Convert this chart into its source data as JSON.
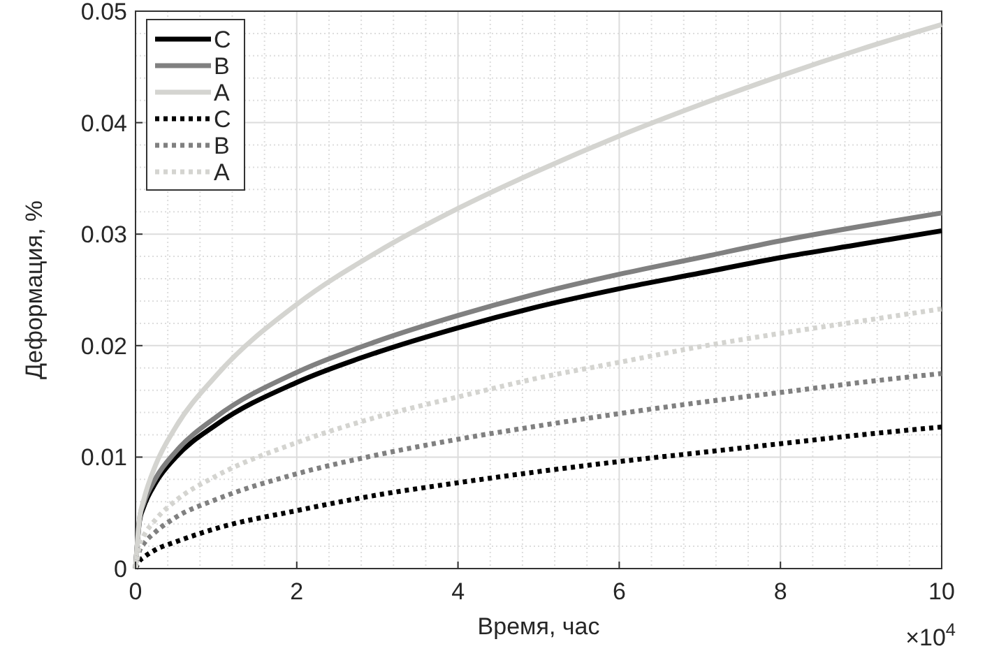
{
  "chart_data": {
    "type": "line",
    "xlabel": "Время, час",
    "ylabel": "Деформация, %",
    "x": [
      0,
      0.05,
      0.1,
      0.25,
      0.5,
      1,
      2,
      3,
      4,
      5,
      6,
      7,
      8,
      9,
      10
    ],
    "series": [
      {
        "name": "C",
        "color": "#000000",
        "line_style": "solid",
        "values": [
          0,
          0.0043,
          0.0055,
          0.0077,
          0.01,
          0.0129,
          0.0167,
          0.0194,
          0.0216,
          0.0235,
          0.0251,
          0.0265,
          0.0279,
          0.0291,
          0.0303
        ]
      },
      {
        "name": "B",
        "color": "#808080",
        "line_style": "solid",
        "values": [
          0,
          0.0045,
          0.0058,
          0.0081,
          0.0105,
          0.0136,
          0.0176,
          0.0204,
          0.0227,
          0.0247,
          0.0264,
          0.0279,
          0.0294,
          0.0307,
          0.0319
        ]
      },
      {
        "name": "A",
        "color": "#d4d4d0",
        "line_style": "solid",
        "values": [
          0,
          0.0045,
          0.0061,
          0.0093,
          0.0127,
          0.0173,
          0.0237,
          0.0284,
          0.0323,
          0.0357,
          0.0388,
          0.0416,
          0.0442,
          0.0466,
          0.0488
        ]
      },
      {
        "name": "C",
        "color": "#000000",
        "line_style": "dotted",
        "values": [
          0,
          0.0007,
          0.001,
          0.0017,
          0.0024,
          0.0036,
          0.0052,
          0.0066,
          0.0077,
          0.0087,
          0.0096,
          0.0104,
          0.0112,
          0.012,
          0.0127
        ]
      },
      {
        "name": "B",
        "color": "#808080",
        "line_style": "dotted",
        "values": [
          0,
          0.0016,
          0.0022,
          0.0033,
          0.0046,
          0.0062,
          0.0085,
          0.0102,
          0.0116,
          0.0128,
          0.0139,
          0.0149,
          0.0158,
          0.0167,
          0.0175
        ]
      },
      {
        "name": "A",
        "color": "#d4d4d0",
        "line_style": "dotted",
        "values": [
          0,
          0.0021,
          0.0029,
          0.0044,
          0.0061,
          0.0083,
          0.0113,
          0.0136,
          0.0154,
          0.0171,
          0.0185,
          0.0199,
          0.0211,
          0.0222,
          0.0233
        ]
      }
    ],
    "xlim": [
      0,
      10
    ],
    "xticks": [
      0,
      2,
      4,
      6,
      8,
      10
    ],
    "ylim": [
      0,
      0.05
    ],
    "yticks": [
      0,
      0.01,
      0.02,
      0.03,
      0.04,
      0.05
    ],
    "annotations": [
      "×10$^{4}$"
    ],
    "grid": true,
    "legend": "top left"
  }
}
